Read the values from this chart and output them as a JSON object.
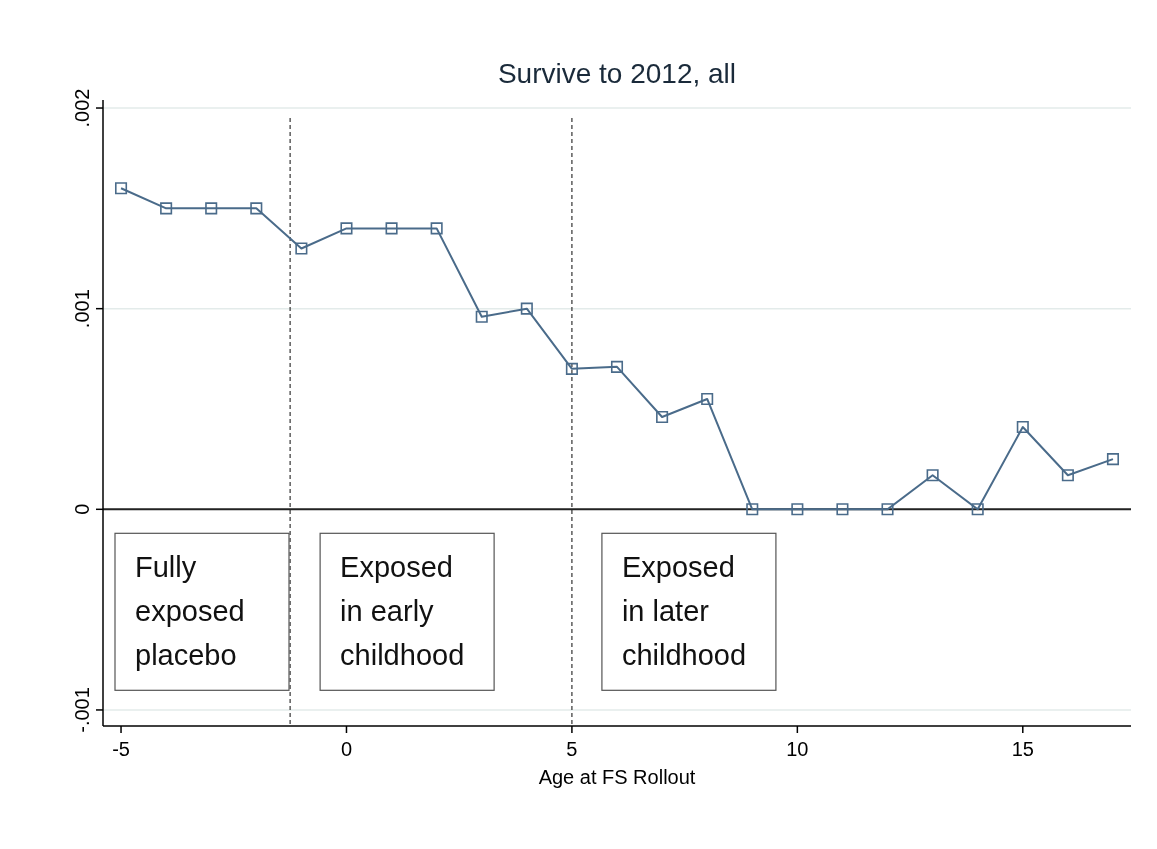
{
  "chart_data": {
    "type": "line",
    "title": "Survive to 2012, all",
    "xlabel": "Age at FS Rollout",
    "x": [
      -5,
      -4,
      -3,
      -2,
      -1,
      0,
      1,
      2,
      3,
      4,
      5,
      6,
      7,
      8,
      9,
      10,
      11,
      12,
      13,
      14,
      15,
      16,
      17
    ],
    "series": [
      {
        "color": "#4a6b8a",
        "values": [
          0.0016,
          0.0015,
          0.0015,
          0.0015,
          0.0013,
          0.0014,
          0.0014,
          0.0014,
          0.00096,
          0.001,
          0.0007,
          0.00071,
          0.00046,
          0.00055,
          0,
          0,
          0,
          0,
          0.00017,
          0,
          0.00041,
          0.00017,
          0.00025
        ]
      }
    ],
    "xlim": [
      -5.4,
      17.4
    ],
    "ylim": [
      -0.00108,
      0.00204
    ],
    "xticks": [
      -5,
      0,
      5,
      10,
      15
    ],
    "yticks": [
      {
        "value": -0.001,
        "label": "-.001"
      },
      0,
      {
        "value": 0.001,
        "label": ".001"
      },
      {
        "value": 0.002,
        "label": ".002"
      }
    ],
    "grid": "y",
    "marker": "square",
    "line_style": "solid",
    "ref_lines": [
      {
        "axis": "x",
        "value": -1.25,
        "color": "#333333",
        "line_style": "dashed"
      },
      {
        "axis": "x",
        "value": 5,
        "color": "#333333",
        "line_style": "dashed"
      },
      {
        "axis": "y",
        "value": 0,
        "color": "#222222",
        "line_style": "solid"
      }
    ],
    "annotations": [
      "Fully\nexposed\nplacebo",
      "Exposed\nin early\nchildhood",
      "Exposed\nin later\nchildhood"
    ]
  }
}
